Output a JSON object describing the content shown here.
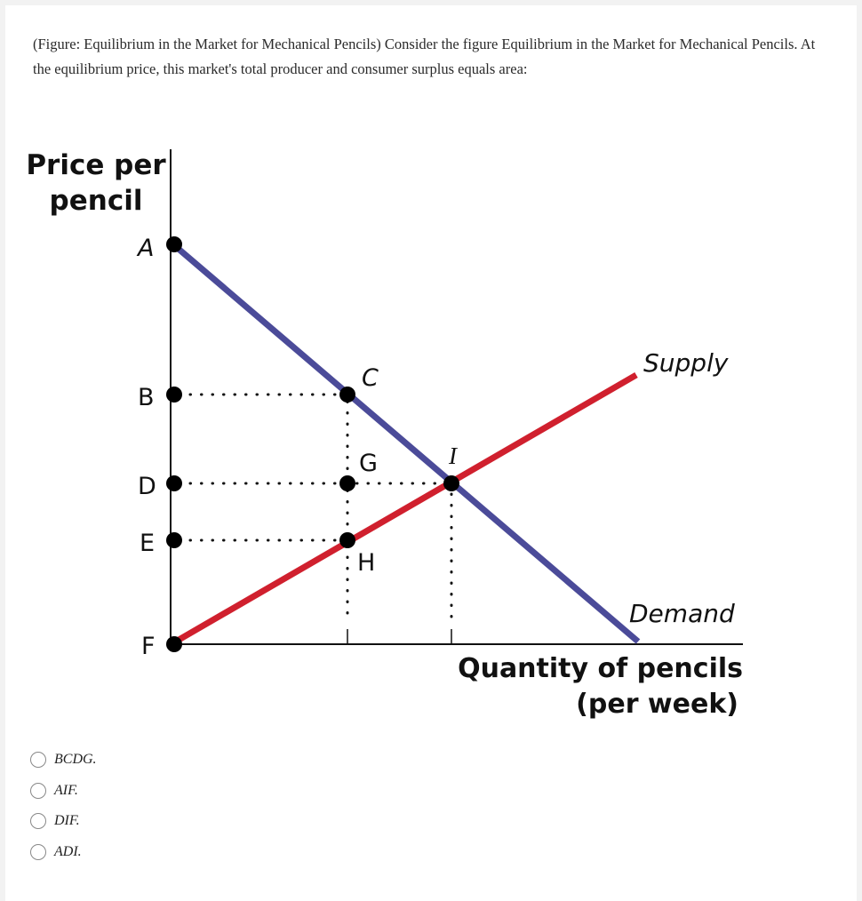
{
  "question": {
    "text": "(Figure: Equilibrium in the Market for Mechanical Pencils) Consider the figure Equilibrium in the Market for Mechanical Pencils. At the equilibrium price, this market's total producer and consumer surplus equals area:"
  },
  "figure": {
    "y_axis_label_line1": "Price per",
    "y_axis_label_line2": "pencil",
    "x_axis_label_line1": "Quantity of pencils",
    "x_axis_label_line2": "(per week)",
    "supply_label": "Supply",
    "demand_label": "Demand",
    "point_labels": {
      "A": "A",
      "B": "B",
      "C": "C",
      "D": "D",
      "E": "E",
      "F": "F",
      "G": "G",
      "H": "H",
      "I": "I"
    },
    "colors": {
      "demand": "#4b4b99",
      "supply": "#d0202e",
      "axis": "#111111"
    }
  },
  "options": [
    {
      "label": "BCDG."
    },
    {
      "label": "AIF."
    },
    {
      "label": "DIF."
    },
    {
      "label": "ADI."
    }
  ]
}
